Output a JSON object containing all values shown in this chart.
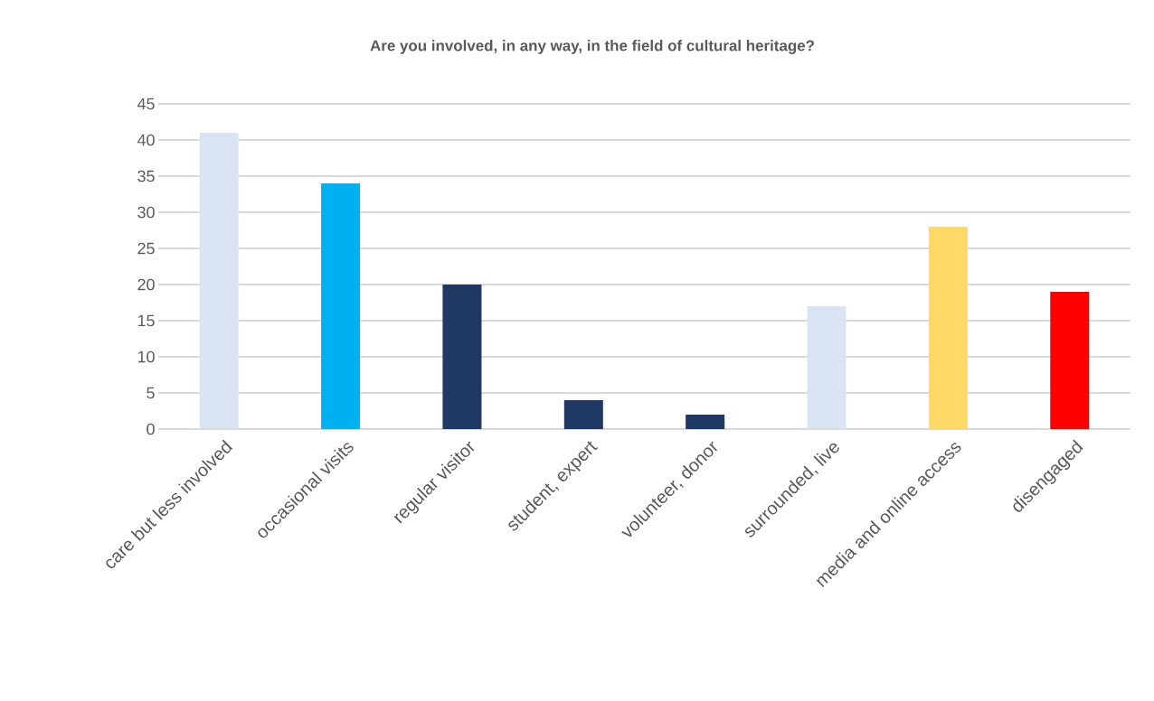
{
  "chart_data": {
    "type": "bar",
    "title": "Are you involved, in any way, in the field of cultural heritage?",
    "categories": [
      "care but less involved",
      "occasional visits",
      "regular visitor",
      "student, expert",
      "volunteer, donor",
      "surrounded, live",
      "media and online access",
      "disengaged"
    ],
    "values": [
      41,
      34,
      20,
      4,
      2,
      17,
      28,
      19
    ],
    "colors": [
      "#dae3f3",
      "#00b0f0",
      "#1f3864",
      "#1f3864",
      "#1f3864",
      "#dae3f3",
      "#ffd966",
      "#ff0000"
    ],
    "ylim": [
      0,
      45
    ],
    "yticks": [
      0,
      5,
      10,
      15,
      20,
      25,
      30,
      35,
      40,
      45
    ],
    "grid": "y"
  }
}
